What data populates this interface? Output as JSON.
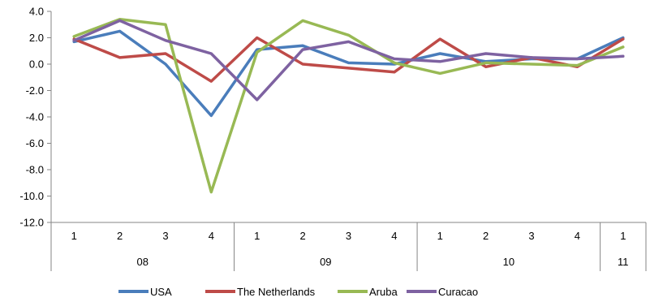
{
  "chart_data": {
    "type": "line",
    "categories": [
      "1",
      "2",
      "3",
      "4",
      "1",
      "2",
      "3",
      "4",
      "1",
      "2",
      "3",
      "4",
      "1"
    ],
    "groups": [
      {
        "label": "08",
        "count": 4
      },
      {
        "label": "09",
        "count": 4
      },
      {
        "label": "10",
        "count": 4
      },
      {
        "label": "11",
        "count": 1
      }
    ],
    "ylim": [
      -12,
      4
    ],
    "yticks": [
      4,
      2,
      0,
      -2,
      -4,
      -6,
      -8,
      -10,
      -12
    ],
    "ytick_labels": [
      "4.0",
      "2.0",
      "0.0",
      "-2.0",
      "-4.0",
      "-6.0",
      "-8.0",
      "-10.0",
      "-12.0"
    ],
    "grid": false,
    "legend_position": "bottom",
    "series": [
      {
        "name": "USA",
        "color": "#4a7dbb",
        "values": [
          1.7,
          2.5,
          0.0,
          -3.9,
          1.1,
          1.4,
          0.1,
          0.0,
          0.8,
          0.2,
          0.4,
          0.4,
          2.0
        ]
      },
      {
        "name": "The Netherlands",
        "color": "#be4b48",
        "values": [
          1.9,
          0.5,
          0.8,
          -1.3,
          2.0,
          0.0,
          -0.3,
          -0.6,
          1.9,
          -0.2,
          0.5,
          -0.2,
          1.9
        ]
      },
      {
        "name": "Aruba",
        "color": "#98b954",
        "values": [
          2.1,
          3.4,
          3.0,
          -9.7,
          0.9,
          3.3,
          2.2,
          0.1,
          -0.7,
          0.1,
          0.0,
          -0.1,
          1.3
        ]
      },
      {
        "name": "Curacao",
        "color": "#7e62a1",
        "values": [
          1.8,
          3.3,
          1.8,
          0.8,
          -2.7,
          1.1,
          1.7,
          0.4,
          0.2,
          0.8,
          0.5,
          0.4,
          0.6
        ]
      }
    ]
  }
}
